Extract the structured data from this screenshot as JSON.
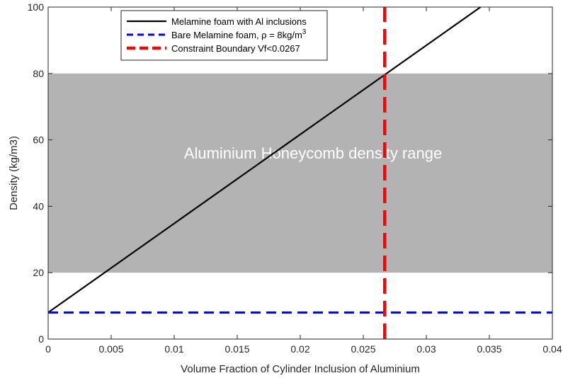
{
  "chart_data": {
    "type": "line",
    "xlabel": "Volume Fraction of Cylinder Inclusion of Aluminium",
    "ylabel": "Density (kg/m3)",
    "xlim": [
      0,
      0.04
    ],
    "ylim": [
      0,
      100
    ],
    "xticks": [
      0,
      0.005,
      0.01,
      0.015,
      0.02,
      0.025,
      0.03,
      0.035,
      0.04
    ],
    "xtick_labels": [
      "0",
      "0.005",
      "0.01",
      "0.015",
      "0.02",
      "0.025",
      "0.03",
      "0.035",
      "0.04"
    ],
    "yticks": [
      0,
      20,
      40,
      60,
      80,
      100
    ],
    "ytick_labels": [
      "0",
      "20",
      "40",
      "60",
      "80",
      "100"
    ],
    "grid": false,
    "legend_position": "top-left",
    "band": {
      "y_range": [
        20,
        80
      ],
      "label": "Aluminium Honeycomb density range",
      "color": "#b3b3b3"
    },
    "series": [
      {
        "name": "Melamine foam with Al inclusions",
        "style": "solid",
        "color": "#000000",
        "x": [
          0,
          0.0343
        ],
        "y": [
          8,
          100
        ]
      },
      {
        "name": "Bare Melamine foam, ρ = 8kg/m",
        "name_superscript": "3",
        "style": "dashed",
        "color": "#0000ff",
        "x": [
          0,
          0.04
        ],
        "y": [
          8,
          8
        ]
      },
      {
        "name": "Constraint Boundary Vf<0.0267",
        "style": "dashed",
        "color": "#ff0000",
        "x": [
          0.0267,
          0.0267
        ],
        "y": [
          0,
          100
        ]
      }
    ]
  }
}
